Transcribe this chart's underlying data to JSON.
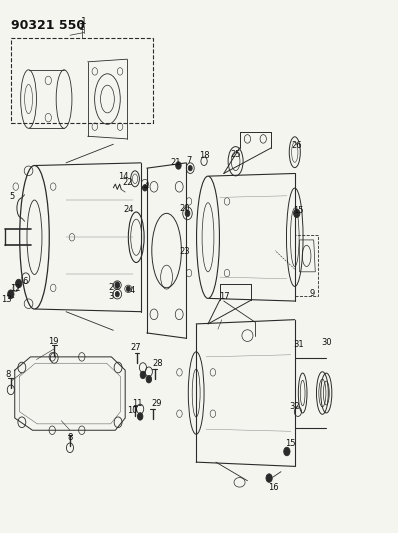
{
  "title": "90321 550",
  "bg_color": "#f5f5f0",
  "line_color": "#2a2a2a",
  "text_color": "#111111",
  "title_fontsize": 9,
  "label_fontsize": 6.5,
  "figsize": [
    3.98,
    5.33
  ],
  "dpi": 100
}
